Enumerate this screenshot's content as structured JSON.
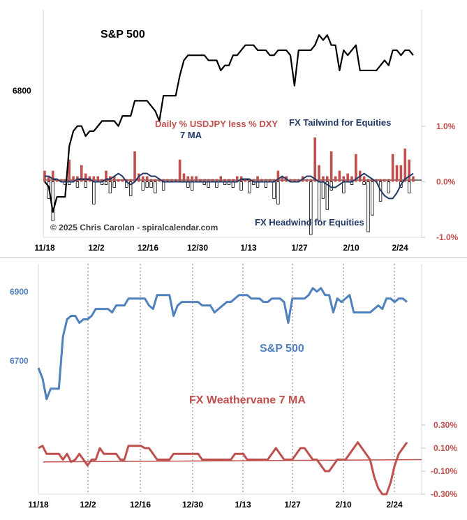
{
  "chart_data": [
    {
      "type": "line+bar",
      "title": "S&P 500",
      "x_tick_labels": [
        "11/18",
        "12/2",
        "12/16",
        "12/30",
        "1/13",
        "1/27",
        "2/10",
        "2/24"
      ],
      "left_axis": {
        "ticks": [
          {
            "label": "6800",
            "value": 6800
          }
        ],
        "range": [
          6510,
          6960
        ]
      },
      "right_axis": {
        "ticks": [
          {
            "label": "1.0%",
            "value": 1.0
          },
          {
            "label": "0.0%",
            "value": 0.0
          },
          {
            "label": "-1.0%",
            "value": -1.0
          }
        ],
        "range": [
          -1.0,
          3.1
        ]
      },
      "series": [
        {
          "name": "S&P 500",
          "axis": "left",
          "color": "#000000",
          "values": [
            6620,
            6610,
            6560,
            6590,
            6590,
            6590,
            6690,
            6720,
            6730,
            6730,
            6710,
            6720,
            6720,
            6730,
            6740,
            6740,
            6740,
            6740,
            6730,
            6750,
            6750,
            6750,
            6780,
            6780,
            6780,
            6780,
            6770,
            6760,
            6740,
            6790,
            6790,
            6790,
            6790,
            6830,
            6860,
            6870,
            6870,
            6870,
            6870,
            6870,
            6860,
            6860,
            6860,
            6840,
            6850,
            6850,
            6870,
            6870,
            6880,
            6890,
            6890,
            6890,
            6880,
            6880,
            6880,
            6870,
            6870,
            6880,
            6880,
            6880,
            6870,
            6810,
            6880,
            6880,
            6880,
            6880,
            6890,
            6910,
            6900,
            6910,
            6890,
            6890,
            6840,
            6880,
            6870,
            6880,
            6890,
            6840,
            6840,
            6840,
            6840,
            6840,
            6850,
            6860,
            6850,
            6880,
            6880,
            6870,
            6880,
            6880,
            6870
          ]
        },
        {
          "name": "Daily % USDJPY less % DXY",
          "axis": "right",
          "type": "bar",
          "color": "#c0504d",
          "values": [
            0.2,
            0.1,
            0.2,
            0.05,
            0.05,
            0.05,
            0.4,
            0.1,
            0.1,
            0.3,
            0.15,
            0.1,
            0.1,
            0.1,
            0.05,
            0.2,
            0.1,
            0.1,
            0.05,
            0.05,
            0.05,
            0.05,
            0.55,
            0.15,
            0.1,
            0.1,
            0.05,
            0.05,
            0.05,
            0.05,
            0.05,
            0.05,
            0.05,
            0.4,
            0.15,
            0.1,
            0.1,
            0.1,
            0.05,
            0.05,
            0.05,
            0.05,
            0.05,
            0.1,
            0.05,
            0.05,
            0.05,
            0.1,
            0.1,
            0.05,
            0.05,
            0.05,
            0.1,
            0.05,
            0.05,
            0.05,
            0.05,
            0.2,
            0.1,
            0.1,
            0.05,
            0.05,
            0.05,
            0.1,
            0.05,
            0.05,
            0.8,
            0.3,
            0.1,
            0.1,
            0.55,
            0.1,
            0.2,
            0.1,
            0.15,
            0.1,
            0.5,
            0.2,
            0.1,
            0.05,
            0.05,
            0.05,
            0.05,
            0.05,
            0.05,
            0.5,
            0.3,
            0.3,
            0.6,
            0.4,
            0.1
          ]
        },
        {
          "name": "Daily % USDJPY less % DXY (negative)",
          "axis": "right",
          "type": "bar",
          "color": "#ffffff",
          "values": [
            0,
            -0.3,
            -0.7,
            0,
            0,
            -0.05,
            -0.05,
            0,
            -0.1,
            0,
            -0.1,
            0,
            -0.4,
            0,
            -0.05,
            -0.05,
            -0.2,
            -0.1,
            0,
            0,
            -0.1,
            -0.25,
            0,
            0,
            -0.15,
            -0.1,
            -0.1,
            -0.2,
            0,
            -0.15,
            0,
            0,
            0,
            0,
            0,
            -0.1,
            -0.15,
            0,
            0,
            -0.05,
            -0.1,
            0,
            -0.1,
            0,
            -0.05,
            -0.05,
            -0.1,
            0,
            -0.15,
            0,
            -0.2,
            -0.05,
            -0.1,
            0,
            -0.1,
            0,
            -0.3,
            -0.4,
            0,
            0,
            0,
            0,
            0,
            0,
            0,
            -0.95,
            0,
            -0.7,
            -0.3,
            -0.5,
            -0.15,
            0,
            0,
            -0.2,
            0,
            -0.05,
            0,
            0,
            -0.05,
            -0.9,
            -0.6,
            0,
            -0.35,
            0,
            -0.2,
            0,
            0,
            -0.1,
            0,
            -0.2,
            0
          ]
        },
        {
          "name": "7 MA",
          "axis": "right",
          "color": "#1f3864",
          "values": [
            0.1,
            0.1,
            0.05,
            0.05,
            0.0,
            0.0,
            0.0,
            0.0,
            0.05,
            0.05,
            0.05,
            0.05,
            0.0,
            0.0,
            0.0,
            0.05,
            0.05,
            0.1,
            0.15,
            0.1,
            0.0,
            -0.05,
            0.0,
            0.1,
            0.15,
            0.15,
            0.1,
            0.1,
            0.05,
            0.0,
            0.0,
            0.0,
            0.0,
            0.0,
            0.0,
            0.0,
            0.0,
            0.0,
            0.0,
            0.0,
            0.0,
            0.0,
            0.0,
            0.0,
            0.0,
            0.0,
            0.0,
            0.0,
            0.05,
            0.05,
            0.05,
            0.0,
            0.0,
            0.0,
            0.0,
            0.0,
            0.0,
            0.05,
            0.1,
            0.05,
            0.0,
            0.0,
            0.0,
            0.05,
            0.1,
            0.1,
            0.05,
            0.0,
            0.0,
            -0.05,
            -0.1,
            -0.1,
            -0.05,
            0.0,
            0.0,
            0.0,
            0.05,
            0.1,
            0.15,
            0.1,
            0.05,
            0.0,
            -0.15,
            -0.25,
            -0.3,
            -0.3,
            -0.2,
            -0.05,
            0.05,
            0.1,
            0.15
          ]
        }
      ],
      "annotations": [
        "Daily % USDJPY less % DXY",
        "7 MA",
        "FX Tailwind for Equities",
        "FX Headwind for Equities",
        "© 2025 Chris Carolan - spiralcalendar.com"
      ]
    },
    {
      "type": "line",
      "x_tick_labels": [
        "11/18",
        "12/2",
        "12/16",
        "12/30",
        "1/13",
        "1/27",
        "2/10",
        "2/24"
      ],
      "left_axis": {
        "ticks": [
          {
            "label": "6900",
            "value": 6900
          },
          {
            "label": "6700",
            "value": 6700
          }
        ],
        "range": [
          6316,
          6980
        ]
      },
      "right_axis": {
        "ticks": [
          {
            "label": "0.30%",
            "value": 0.3
          },
          {
            "label": "0.10%",
            "value": 0.1
          },
          {
            "label": "-0.10%",
            "value": -0.1
          },
          {
            "label": "-0.30%",
            "value": -0.3
          }
        ],
        "range": [
          -0.3,
          1.7
        ]
      },
      "grid": "vertical dotted at each date tick",
      "series": [
        {
          "name": "S&P 500",
          "axis": "left",
          "color": "#4f81bd",
          "values": [
            6680,
            6650,
            6590,
            6620,
            6620,
            6620,
            6770,
            6820,
            6830,
            6830,
            6810,
            6820,
            6820,
            6830,
            6850,
            6850,
            6850,
            6850,
            6840,
            6860,
            6860,
            6860,
            6880,
            6880,
            6880,
            6880,
            6880,
            6860,
            6850,
            6890,
            6890,
            6890,
            6890,
            6830,
            6860,
            6870,
            6870,
            6870,
            6870,
            6870,
            6860,
            6860,
            6860,
            6840,
            6850,
            6860,
            6870,
            6870,
            6880,
            6890,
            6890,
            6890,
            6880,
            6880,
            6880,
            6870,
            6870,
            6880,
            6880,
            6880,
            6870,
            6810,
            6880,
            6880,
            6880,
            6880,
            6890,
            6910,
            6900,
            6910,
            6890,
            6890,
            6840,
            6880,
            6870,
            6880,
            6890,
            6840,
            6840,
            6840,
            6840,
            6840,
            6850,
            6860,
            6850,
            6880,
            6880,
            6870,
            6880,
            6880,
            6870
          ]
        },
        {
          "name": "FX Weathervane 7 MA",
          "axis": "right",
          "color": "#c0504d",
          "values": [
            0.1,
            0.12,
            0.05,
            0.05,
            0.05,
            0.05,
            0.0,
            0.05,
            -0.02,
            0.0,
            0.05,
            0.0,
            -0.05,
            0.0,
            0.0,
            0.1,
            0.05,
            0.05,
            0.05,
            0.05,
            0.0,
            0.0,
            0.12,
            0.12,
            0.12,
            0.12,
            0.1,
            0.1,
            0.05,
            0.0,
            0.0,
            0.0,
            0.0,
            0.05,
            0.05,
            0.05,
            0.05,
            0.05,
            0.05,
            0.05,
            0.0,
            0.0,
            0.0,
            0.0,
            0.0,
            0.0,
            0.0,
            0.0,
            0.05,
            0.05,
            0.05,
            0.0,
            0.0,
            0.0,
            0.0,
            0.0,
            0.0,
            0.05,
            0.1,
            0.05,
            0.0,
            0.0,
            0.0,
            0.05,
            0.1,
            0.1,
            0.05,
            0.0,
            0.0,
            -0.05,
            -0.1,
            -0.1,
            -0.05,
            0.0,
            0.0,
            0.0,
            0.05,
            0.1,
            0.15,
            0.1,
            0.05,
            0.0,
            -0.15,
            -0.25,
            -0.3,
            -0.3,
            -0.2,
            -0.05,
            0.05,
            0.1,
            0.15
          ]
        },
        {
          "name": "Trend",
          "axis": "right",
          "color": "#c0504d",
          "type": "trendline",
          "values": [
            -0.02,
            0.0
          ]
        }
      ],
      "annotations": [
        "S&P 500",
        "FX Weathervane 7 MA"
      ]
    }
  ]
}
